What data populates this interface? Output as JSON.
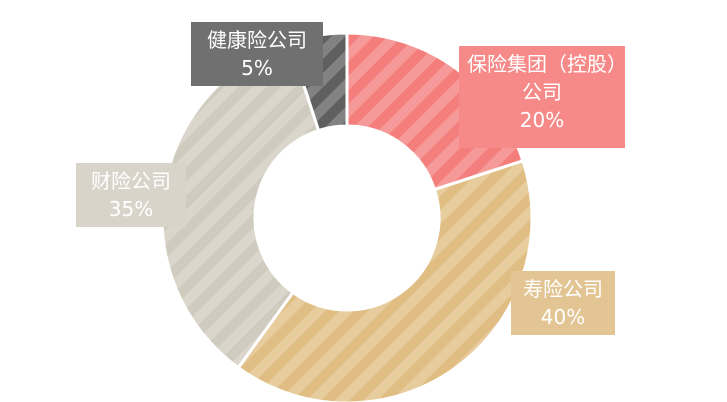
{
  "chart_data": {
    "type": "pie",
    "variant": "donut",
    "categories": [
      "保险集团（控股）公司",
      "寿险公司",
      "财险公司",
      "健康险公司"
    ],
    "values": [
      20,
      40,
      35,
      5
    ],
    "value_labels": [
      "20%",
      "40%",
      "35%",
      "5%"
    ],
    "colors": [
      "#f47e7c",
      "#e0bd82",
      "#cfcbbe",
      "#5f5f5f"
    ],
    "label_colors": [
      "#f68a88",
      "#e3c594",
      "#d8d4c9",
      "#707070"
    ],
    "pattern": "diagonal-stripes",
    "legend": "none"
  }
}
